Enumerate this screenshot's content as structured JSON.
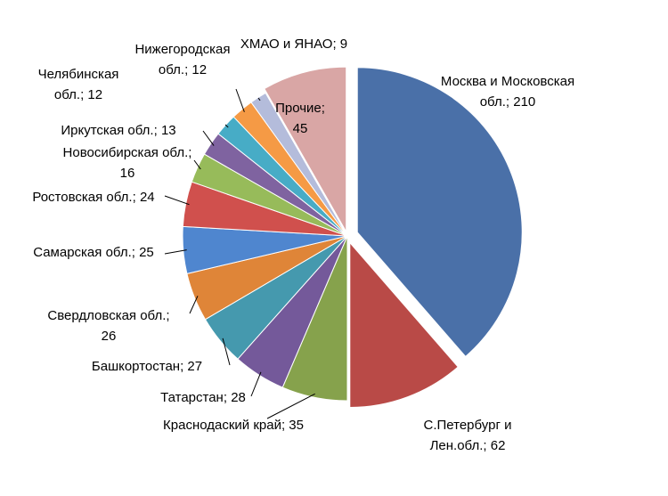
{
  "chart_data": {
    "type": "pie",
    "categories": [
      "Москва и Московская обл.;",
      "С.Петербург и Лен.обл.;",
      "Краснодаский край;",
      "Татарстан;",
      "Башкортостан;",
      "Свердловская обл.;",
      "Самарская обл.;",
      "Ростовская обл.;",
      "Новосибирская обл.;",
      "Иркутская обл.;",
      "Челябинская обл.;",
      "Нижегородская обл.;",
      "ХМАО и ЯНАО;",
      "Прочие;"
    ],
    "values": [
      210,
      62,
      35,
      28,
      27,
      26,
      25,
      24,
      16,
      13,
      12,
      12,
      9,
      45
    ],
    "colors": [
      "#4a70a8",
      "#b94a47",
      "#86a24c",
      "#74599a",
      "#4599ae",
      "#df8538",
      "#4f86cf",
      "#d0504d",
      "#97bb5a",
      "#7f63a0",
      "#47acc6",
      "#f59a45",
      "#b4bcdb",
      "#d9a6a5"
    ]
  }
}
